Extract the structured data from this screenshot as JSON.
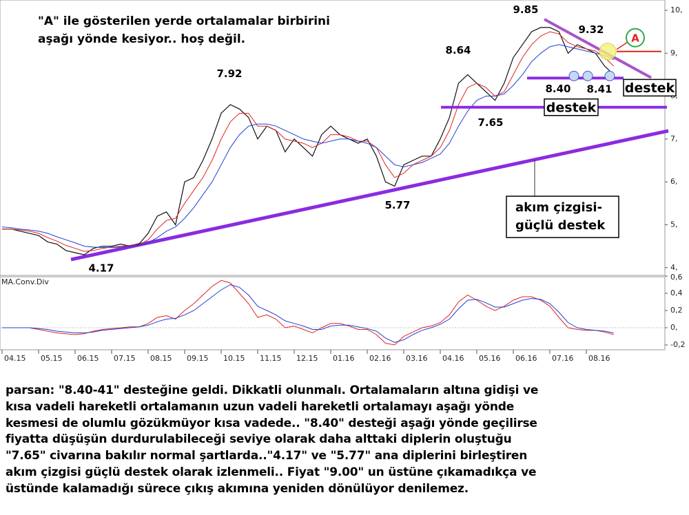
{
  "note": [
    "\"A\" ile gösterilen yerde ortalamalar birbirini",
    "aşağı yönde kesiyor.. hoş değil."
  ],
  "chart_data": [
    {
      "type": "line",
      "ylim": [
        3.82,
        10.24
      ],
      "yticks": [
        {
          "value": 4,
          "label": "4,"
        },
        {
          "value": 5,
          "label": "5,"
        },
        {
          "value": 6,
          "label": "6,"
        },
        {
          "value": 7,
          "label": "7,"
        },
        {
          "value": 8,
          "label": "8,"
        },
        {
          "value": 9,
          "label": "9,"
        },
        {
          "value": 10,
          "label": "10,"
        }
      ],
      "series": [
        {
          "color": "#111111",
          "values": [
            4.9,
            4.9,
            4.85,
            4.8,
            4.75,
            4.6,
            4.55,
            4.4,
            4.35,
            4.3,
            4.45,
            4.5,
            4.5,
            4.55,
            4.5,
            4.55,
            4.8,
            5.2,
            5.3,
            5.0,
            6.0,
            6.1,
            6.5,
            7.0,
            7.6,
            7.8,
            7.7,
            7.5,
            7.0,
            7.3,
            7.2,
            6.7,
            7.0,
            6.8,
            6.6,
            7.1,
            7.3,
            7.1,
            7.0,
            6.9,
            7.0,
            6.6,
            6.0,
            5.9,
            6.4,
            6.5,
            6.6,
            6.6,
            7.0,
            7.5,
            8.3,
            8.5,
            8.3,
            8.1,
            7.9,
            8.3,
            8.9,
            9.2,
            9.5,
            9.6,
            9.6,
            9.5,
            9.0,
            9.2,
            9.1,
            9.0,
            8.7,
            8.5
          ]
        },
        {
          "color": "#e0231c",
          "values": [
            4.9,
            4.9,
            4.88,
            4.85,
            4.8,
            4.7,
            4.62,
            4.52,
            4.45,
            4.38,
            4.4,
            4.45,
            4.48,
            4.5,
            4.52,
            4.53,
            4.65,
            4.9,
            5.1,
            5.15,
            5.5,
            5.8,
            6.1,
            6.5,
            7.0,
            7.4,
            7.6,
            7.6,
            7.3,
            7.3,
            7.2,
            7.0,
            6.95,
            6.9,
            6.8,
            6.9,
            7.1,
            7.1,
            7.05,
            6.95,
            6.95,
            6.8,
            6.4,
            6.1,
            6.2,
            6.4,
            6.5,
            6.6,
            6.8,
            7.2,
            7.8,
            8.2,
            8.3,
            8.2,
            8.0,
            8.1,
            8.5,
            8.9,
            9.2,
            9.4,
            9.5,
            9.45,
            9.25,
            9.15,
            9.1,
            9.05,
            8.9,
            8.7
          ]
        },
        {
          "color": "#1f3fd6",
          "values": [
            4.95,
            4.93,
            4.9,
            4.88,
            4.85,
            4.8,
            4.72,
            4.65,
            4.58,
            4.5,
            4.48,
            4.47,
            4.47,
            4.48,
            4.5,
            4.52,
            4.58,
            4.7,
            4.85,
            4.95,
            5.15,
            5.4,
            5.7,
            6.0,
            6.4,
            6.8,
            7.1,
            7.3,
            7.35,
            7.35,
            7.3,
            7.2,
            7.1,
            7.0,
            6.95,
            6.9,
            6.95,
            7.0,
            7.0,
            6.95,
            6.9,
            6.8,
            6.6,
            6.4,
            6.35,
            6.4,
            6.45,
            6.55,
            6.65,
            6.9,
            7.3,
            7.65,
            7.9,
            8.0,
            8.0,
            8.05,
            8.25,
            8.5,
            8.8,
            9.0,
            9.15,
            9.2,
            9.15,
            9.1,
            9.05,
            9.0,
            8.95,
            8.85
          ]
        }
      ],
      "annotations": [
        {
          "label": "9.85",
          "value": 9.85
        },
        {
          "label": "9.32",
          "value": 9.32
        },
        {
          "label": "8.64",
          "value": 8.64
        },
        {
          "label": "7.92",
          "value": 7.92
        },
        {
          "label": "7.65",
          "value": 7.65
        },
        {
          "label": "5.77",
          "value": 5.77
        },
        {
          "label": "4.17",
          "value": 4.17
        },
        {
          "label": "8.40",
          "value": 8.4
        },
        {
          "label": "8.41",
          "value": 8.41
        }
      ],
      "levels": [
        {
          "label": "destek",
          "value": 8.42,
          "color": "#8a2be2"
        },
        {
          "label": "destek",
          "value": 7.74,
          "color": "#8a2be2"
        }
      ],
      "trendline": {
        "label": [
          "akım çizgisi-",
          "güçlü destek"
        ],
        "values": [
          4.19,
          7.19
        ],
        "color": "#8a2be2"
      },
      "resistance": {
        "values": [
          9.79,
          8.43
        ],
        "color": "#a855c8"
      },
      "marker": {
        "label": "A",
        "value": 9.04
      }
    },
    {
      "type": "line",
      "title": "MA.Conv.Div",
      "categories": [
        "04.15",
        null,
        null,
        null,
        "05.15",
        null,
        null,
        null,
        "06.15",
        null,
        null,
        null,
        "07.15",
        null,
        null,
        null,
        "08.15",
        null,
        null,
        null,
        "09.15",
        null,
        null,
        null,
        "10.15",
        null,
        null,
        null,
        "11.15",
        null,
        null,
        null,
        "12.15",
        null,
        null,
        null,
        "01.16",
        null,
        null,
        null,
        "02.16",
        null,
        null,
        null,
        "03.16",
        null,
        null,
        null,
        "04.16",
        null,
        null,
        null,
        "05.16",
        null,
        null,
        null,
        "06.16",
        null,
        null,
        null,
        "07.16",
        null,
        null,
        null,
        "08.16",
        null,
        null,
        null
      ],
      "ylim": [
        -0.256,
        0.592
      ],
      "yticks": [
        {
          "value": 0.6,
          "label": "0,6"
        },
        {
          "value": 0.4,
          "label": "0,4"
        },
        {
          "value": 0.2,
          "label": "0,2"
        },
        {
          "value": 0,
          "label": "0,"
        },
        {
          "value": -0.2,
          "label": "-0,2"
        }
      ],
      "series": [
        {
          "color": "#e0231c",
          "values": [
            0,
            0,
            0,
            0,
            -0.02,
            -0.04,
            -0.06,
            -0.07,
            -0.08,
            -0.07,
            -0.04,
            -0.02,
            -0.01,
            0,
            0.01,
            0.01,
            0.05,
            0.12,
            0.14,
            0.1,
            0.2,
            0.28,
            0.38,
            0.48,
            0.55,
            0.52,
            0.4,
            0.28,
            0.12,
            0.15,
            0.1,
            0.0,
            0.02,
            -0.02,
            -0.06,
            0.0,
            0.05,
            0.05,
            0.02,
            -0.02,
            -0.02,
            -0.08,
            -0.18,
            -0.2,
            -0.1,
            -0.05,
            0.0,
            0.02,
            0.06,
            0.15,
            0.3,
            0.38,
            0.32,
            0.25,
            0.2,
            0.25,
            0.32,
            0.36,
            0.36,
            0.32,
            0.25,
            0.12,
            0.0,
            -0.02,
            -0.03,
            -0.03,
            -0.05,
            -0.08
          ]
        },
        {
          "color": "#1f3fd6",
          "values": [
            0,
            0,
            0,
            0,
            -0.01,
            -0.02,
            -0.04,
            -0.05,
            -0.06,
            -0.06,
            -0.05,
            -0.03,
            -0.02,
            -0.01,
            0,
            0.01,
            0.03,
            0.07,
            0.1,
            0.11,
            0.15,
            0.2,
            0.28,
            0.36,
            0.44,
            0.5,
            0.47,
            0.38,
            0.25,
            0.2,
            0.15,
            0.08,
            0.05,
            0.02,
            -0.02,
            -0.02,
            0.02,
            0.03,
            0.03,
            0.01,
            -0.01,
            -0.04,
            -0.12,
            -0.17,
            -0.14,
            -0.08,
            -0.03,
            0.0,
            0.04,
            0.1,
            0.22,
            0.32,
            0.33,
            0.29,
            0.24,
            0.24,
            0.28,
            0.32,
            0.34,
            0.33,
            0.28,
            0.18,
            0.06,
            0.0,
            -0.02,
            -0.03,
            -0.04,
            -0.06
          ]
        }
      ]
    }
  ],
  "commentary": [
    "parsan: \"8.40-41\" desteğine geldi. Dikkatli olunmalı. Ortalamaların altına gidişi ve",
    "kısa vadeli hareketli ortalamanın uzun vadeli hareketli ortalamayı aşağı yönde",
    "kesmesi de olumlu gözükmüyor kısa vadede.. \"8.40\" desteği aşağı yönde geçilirse",
    "fiyatta düşüşün durdurulabileceği seviye olarak daha alttaki diplerin oluştuğu",
    "\"7.65\" civarına bakılır normal şartlarda..\"4.17\" ve \"5.77\" ana diplerini birleştiren",
    "akım çizgisi güçlü destek olarak izlenmeli.. Fiyat \"9.00\" un üstüne çıkamadıkça ve",
    "üstünde kalamadığı sürece çıkış akımına yeniden dönülüyor denilemez."
  ]
}
